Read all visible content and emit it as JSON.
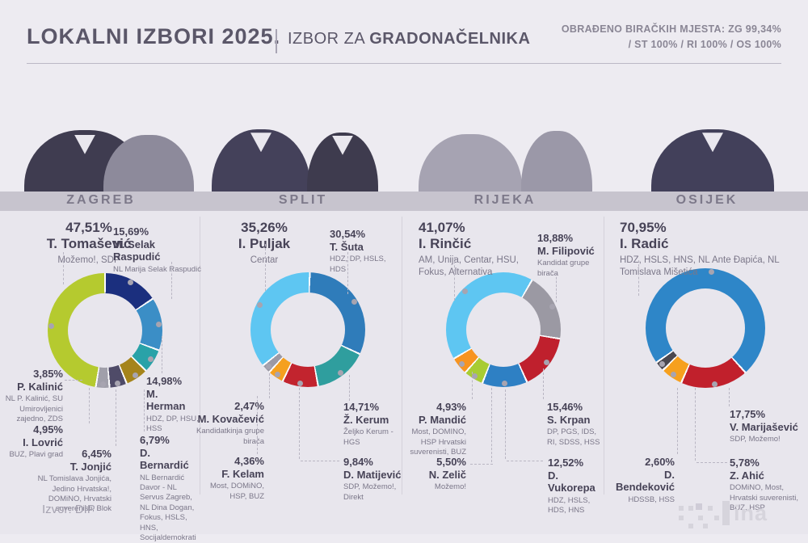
{
  "header": {
    "title_main": "LOKALNI IZBORI",
    "title_year": "2025.",
    "subtitle_prefix": "IZBOR ZA",
    "subtitle_bold": "GRADONAČELNIKA",
    "processed_line1": "OBRAĐENO BIRAČKIH MJESTA:  ZG 99,34%",
    "processed_line2": "/ ST 100% / RI 100% / OS 100%"
  },
  "footer": {
    "source": "Izvor: DIP",
    "logo_text": "ina"
  },
  "colors": {
    "background": "#edebf1",
    "chart_region": "#e8e6ed",
    "city_band": "#c7c4ce",
    "title_text": "#5b5769",
    "label_text": "#474357",
    "party_text": "#7b7789",
    "leader_dot": "#a7a4b0"
  },
  "chart_data": [
    {
      "type": "pie",
      "variant": "donut",
      "city": "ZAGREB",
      "start_angle": 0,
      "slices": [
        {
          "value": 15.69,
          "pct": "15,69%",
          "name": "M. Selak Raspudić",
          "party": "NL Marija Selak Raspudić",
          "color": "#1b2f7e"
        },
        {
          "value": 14.98,
          "pct": "14,98%",
          "name": "M. Herman",
          "party": "HDZ, DP, HSU, HSS",
          "color": "#3b8ec6"
        },
        {
          "value": 6.79,
          "pct": "6,79%",
          "name": "D. Bernardić",
          "party": "NL Bernardić Davor - NL Servus Zagreb, NL Dina Dogan, Fokus, HSLS, HNS, Socijaldemokrati",
          "color": "#29a2a8"
        },
        {
          "value": 6.45,
          "pct": "6,45%",
          "name": "T. Jonjić",
          "party": "NL Tomislava Jonjića, Jedino Hrvatska!, DOMiNO, Hrvatski suverenisti, Blok",
          "color": "#a5841b"
        },
        {
          "value": 4.95,
          "pct": "4,95%",
          "name": "I. Lovrić",
          "party": "BUZ, Plavi grad",
          "color": "#4f4b68"
        },
        {
          "value": 3.85,
          "pct": "3,85%",
          "name": "P. Kalinić",
          "party": "NL P. Kalinić, SU Umirovljenici zajedno, ZDS",
          "color": "#a09faa"
        },
        {
          "value": 47.51,
          "pct": "47,51%",
          "name": "T. Tomašević",
          "party": "Možemo!, SDP",
          "color": "#b5ca2f"
        }
      ]
    },
    {
      "type": "pie",
      "variant": "donut",
      "city": "SPLIT",
      "start_angle": 2,
      "slices": [
        {
          "value": 30.54,
          "pct": "30,54%",
          "name": "T. Šuta",
          "party": "HDZ, DP, HSLS, HDS",
          "color": "#2f7cba"
        },
        {
          "value": 14.71,
          "pct": "14,71%",
          "name": "Ž. Kerum",
          "party": "Željko Kerum - HGS",
          "color": "#2f9e9e"
        },
        {
          "value": 9.84,
          "pct": "9,84%",
          "name": "D. Matijević",
          "party": "SDP, Možemo!, Direkt",
          "color": "#c2242e"
        },
        {
          "value": 4.36,
          "pct": "4,36%",
          "name": "F. Kelam",
          "party": "Most, DOMiNO, HSP, BUZ",
          "color": "#f5a01f"
        },
        {
          "value": 2.47,
          "pct": "2,47%",
          "name": "M. Kovačević",
          "party": "Kandidatkinja grupe birača",
          "color": "#9b99a5"
        },
        {
          "value": 35.26,
          "pct": "35,26%",
          "name": "I. Puljak",
          "party": "Centar",
          "color": "#5ec6f2"
        }
      ]
    },
    {
      "type": "pie",
      "variant": "donut",
      "city": "RIJEKA",
      "start_angle": 30,
      "slices": [
        {
          "value": 18.88,
          "pct": "18,88%",
          "name": "M. Filipović",
          "party": "Kandidat grupe birača",
          "color": "#9b99a3"
        },
        {
          "value": 15.46,
          "pct": "15,46%",
          "name": "S. Krpan",
          "party": "DP, PGS, IDS, RI, SDSS, HSS",
          "color": "#bf202d"
        },
        {
          "value": 12.52,
          "pct": "12,52%",
          "name": "D. Vukorepa",
          "party": "HDZ, HSLS, HDS, HNS",
          "color": "#2e80c4"
        },
        {
          "value": 5.5,
          "pct": "5,50%",
          "name": "N. Zelič",
          "party": "Možemo!",
          "color": "#a8cc33"
        },
        {
          "value": 4.93,
          "pct": "4,93%",
          "name": "P. Mandić",
          "party": "Most, DOMINO, HSP Hrvatski suverenisti, BUZ",
          "color": "#f79420"
        },
        {
          "value": 41.07,
          "pct": "41,07%",
          "name": "I. Rinčić",
          "party": "AM, Unija, Centar, HSU, Fokus, Alternativa",
          "color": "#5ec6f2"
        }
      ]
    },
    {
      "type": "pie",
      "variant": "donut",
      "city": "OSIJEK",
      "start_angle": 138,
      "slices": [
        {
          "value": 17.75,
          "pct": "17,75%",
          "name": "V. Marijašević",
          "party": "SDP, Možemo!",
          "color": "#c1202c"
        },
        {
          "value": 5.78,
          "pct": "5,78%",
          "name": "Z. Ahić",
          "party": "DOMiNO, Most, Hrvatski suverenisti, BUZ, HSP",
          "color": "#f6a01e"
        },
        {
          "value": 2.6,
          "pct": "2,60%",
          "name": "D. Bendeković",
          "party": "HDSSB, HSS",
          "color": "#4a4850"
        },
        {
          "value": 70.95,
          "pct": "70,95%",
          "name": "I. Radić",
          "party": "HDZ, HSLS, HNS, NL Ante Đapića, NL Tomislava Mišetića",
          "color": "#2e86c8"
        }
      ]
    }
  ]
}
